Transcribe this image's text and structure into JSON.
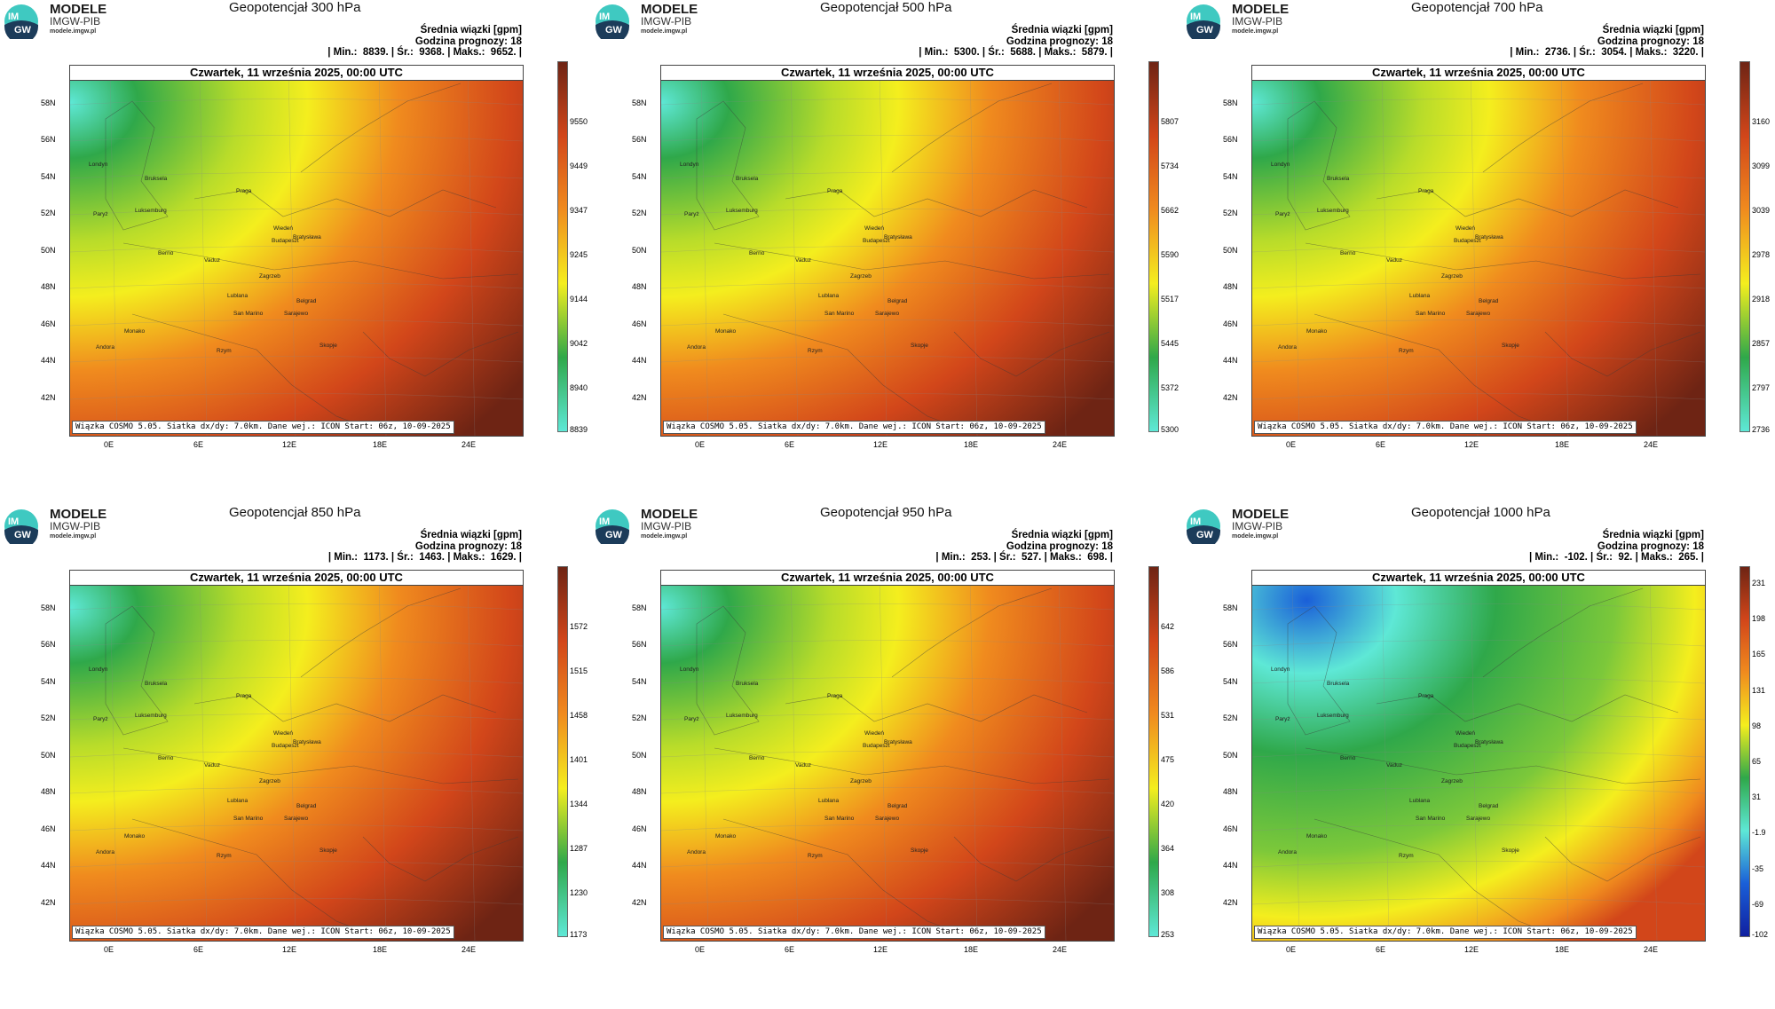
{
  "brand": {
    "name": "MODELE",
    "org": "IMGW-PIB",
    "url": "modele.imgw.pl",
    "logo_text": "IM GW"
  },
  "labels": {
    "meta_line1": "Średnia wiązki [gpm]",
    "meta_line2": "Godzina prognozy: 18",
    "date": "Czwartek, 11 września 2025, 00:00 UTC",
    "footer": "Wiązka COSMO 5.05. Siatka dx/dy: 7.0km. Dane wej.: ICON Start: 06z, 10-09-2025"
  },
  "axes": {
    "lat_labels": [
      "58N",
      "56N",
      "54N",
      "52N",
      "50N",
      "48N",
      "46N",
      "44N",
      "42N"
    ],
    "lon_labels": [
      "0E",
      "6E",
      "12E",
      "18E",
      "24E"
    ]
  },
  "cities": [
    "Londyn",
    "Bruksela",
    "Paryż",
    "Luksemburg",
    "Praga",
    "Wiedeń",
    "Bratysława",
    "Budapeszt",
    "Berno",
    "Vaduz",
    "Lublana",
    "Zagrzeb",
    "Belgrad",
    "San Marino",
    "Sarajewo",
    "Andora",
    "Monako",
    "Rzym",
    "Skopje"
  ],
  "colors": {
    "green": "#2fa84a",
    "yellow": "#f4ee1e",
    "orange": "#f08b1e",
    "red": "#d2461a",
    "darkred": "#6e2414",
    "cyan": "#5ee8d6",
    "blue": "#1a5fd8"
  },
  "panels": [
    {
      "title": "Geopotencjał 300 hPa",
      "min": "8839.",
      "mean": "9368.",
      "max": "9652.",
      "cbar_ticks": [
        "9550",
        "9449",
        "9347",
        "9245",
        "9144",
        "9042",
        "8940",
        "8839"
      ],
      "scheme": "standard"
    },
    {
      "title": "Geopotencjał 500 hPa",
      "min": "5300.",
      "mean": "5688.",
      "max": "5879.",
      "cbar_ticks": [
        "5807",
        "5734",
        "5662",
        "5590",
        "5517",
        "5445",
        "5372",
        "5300"
      ],
      "scheme": "standard"
    },
    {
      "title": "Geopotencjał 700 hPa",
      "min": "2736.",
      "mean": "3054.",
      "max": "3220.",
      "cbar_ticks": [
        "3160",
        "3099",
        "3039",
        "2978",
        "2918",
        "2857",
        "2797",
        "2736"
      ],
      "scheme": "standard"
    },
    {
      "title": "Geopotencjał 850 hPa",
      "min": "1173.",
      "mean": "1463.",
      "max": "1629.",
      "cbar_ticks": [
        "1572",
        "1515",
        "1458",
        "1401",
        "1344",
        "1287",
        "1230",
        "1173"
      ],
      "scheme": "standard"
    },
    {
      "title": "Geopotencjał 950 hPa",
      "min": "253.",
      "mean": "527.",
      "max": "698.",
      "cbar_ticks": [
        "642",
        "586",
        "531",
        "475",
        "420",
        "364",
        "308",
        "253"
      ],
      "scheme": "standard"
    },
    {
      "title": "Geopotencjał 1000 hPa",
      "min": "-102.",
      "mean": "92.",
      "max": "265.",
      "cbar_ticks": [
        "231",
        "198",
        "165",
        "131",
        "98",
        "65",
        "31",
        "-1.9",
        "-35",
        "-69",
        "-102"
      ],
      "scheme": "cold"
    }
  ]
}
